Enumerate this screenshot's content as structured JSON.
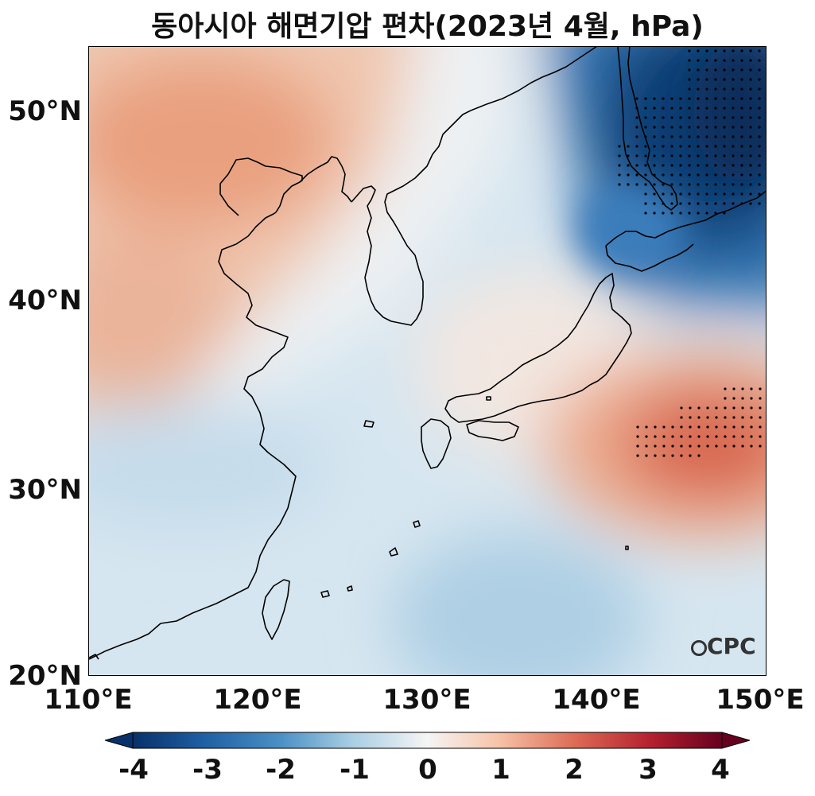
{
  "title": "동아시아 해면기압 편차(2023년 4월, hPa)",
  "lat_labels": [
    "50°N",
    "40°N",
    "30°N",
    "20°N"
  ],
  "lon_labels": [
    "110°E",
    "120°E",
    "130°E",
    "140°E",
    "150°E"
  ],
  "colorbar": {
    "ticks": [
      "-4",
      "-3",
      "-2",
      "-1",
      "0",
      "1",
      "2",
      "3",
      "4"
    ],
    "colormap": "RdBu_r"
  },
  "logo": "CPC",
  "colors": {
    "strong_negative": "#0b3c73",
    "negative": "#2f72b4",
    "weak_negative": "#c9e0ee",
    "neutral": "#f5f5f5",
    "weak_positive": "#f6c9b2",
    "positive": "#de7a5f",
    "strong_positive": "#7a0b24"
  },
  "extent": {
    "lon": [
      110,
      150
    ],
    "lat": [
      20,
      53.5
    ]
  }
}
